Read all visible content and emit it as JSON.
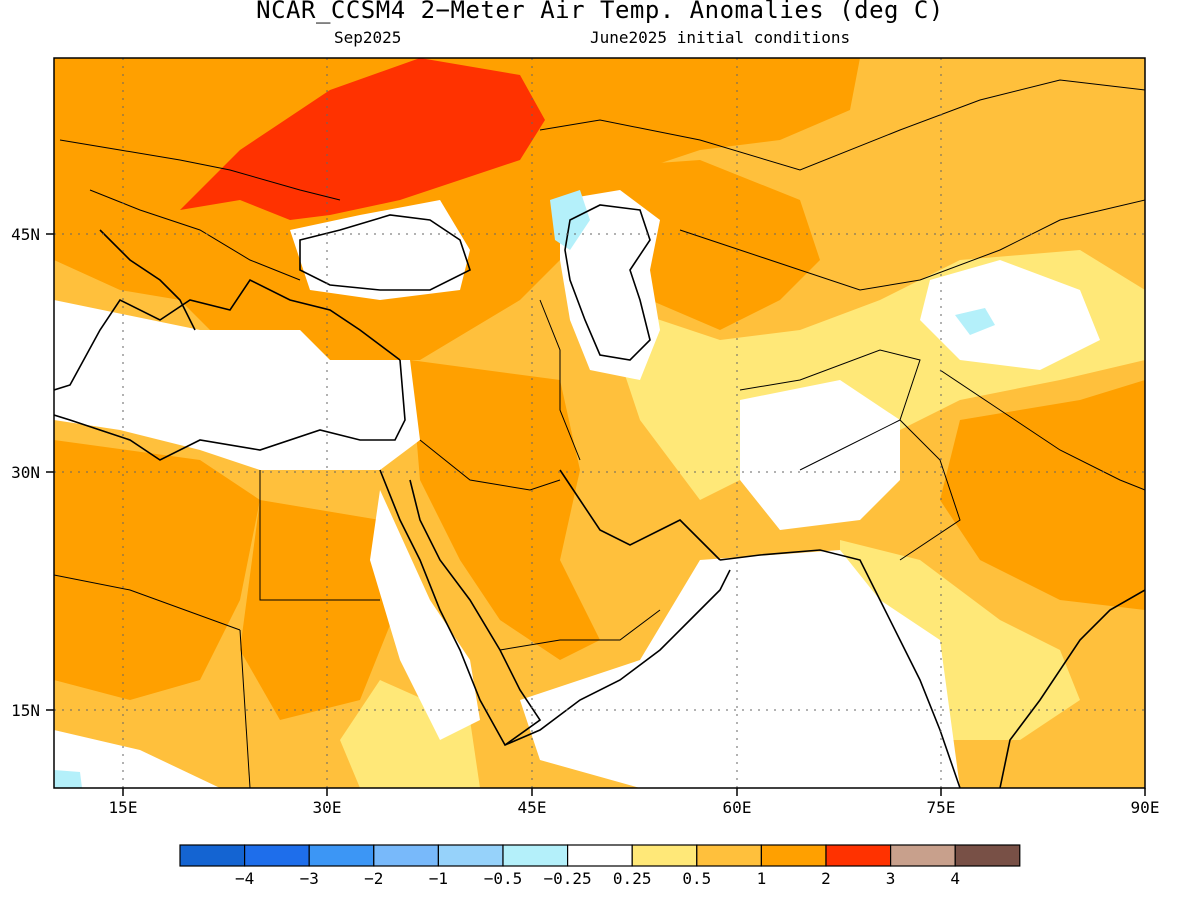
{
  "title": "NCAR_CCSM4 2−Meter Air Temp. Anomalies (deg C)",
  "subtitle_left": "Sep2025",
  "subtitle_right": "June2025 initial conditions",
  "map": {
    "lon_range": [
      10,
      90
    ],
    "lat_range": [
      10,
      57
    ],
    "x_ticks": [
      "15E",
      "30E",
      "45E",
      "60E",
      "75E",
      "90E"
    ],
    "y_ticks": [
      "45N",
      "30N",
      "15N"
    ],
    "grid": "dotted"
  },
  "colorbar": {
    "tick_labels": [
      "−4",
      "−3",
      "−2",
      "−1",
      "−0.5",
      "−0.25",
      "0.25",
      "0.5",
      "1",
      "2",
      "3",
      "4"
    ],
    "colors": [
      "#1464d2",
      "#1e6eeb",
      "#3c96f5",
      "#78b9fa",
      "#96d2fa",
      "#b4f0fa",
      "#ffffff",
      "#ffe878",
      "#ffc03c",
      "#ffa000",
      "#ff3200",
      "#c8a08c",
      "#785046"
    ]
  }
}
